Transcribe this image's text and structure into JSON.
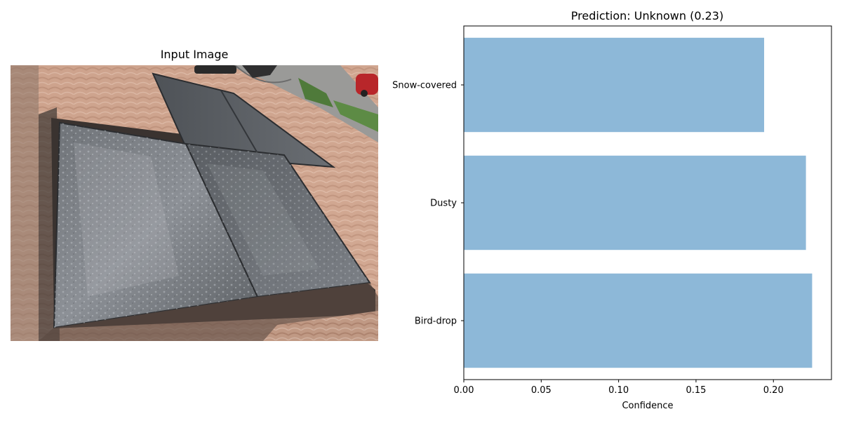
{
  "image_panel": {
    "title": "Input Image"
  },
  "chart_data": {
    "type": "bar",
    "orientation": "horizontal",
    "title": "Prediction: Unknown (0.23)",
    "xlabel": "Confidence",
    "ylabel": "",
    "categories": [
      "Bird-drop",
      "Dusty",
      "Snow-covered"
    ],
    "values": [
      0.225,
      0.221,
      0.194
    ],
    "xlim": [
      0,
      0.2375
    ],
    "xticks": [
      0.0,
      0.05,
      0.1,
      0.15,
      0.2
    ],
    "xtick_labels": [
      "0.00",
      "0.05",
      "0.10",
      "0.15",
      "0.20"
    ],
    "bar_color": "#8db8d8",
    "grid": false
  }
}
